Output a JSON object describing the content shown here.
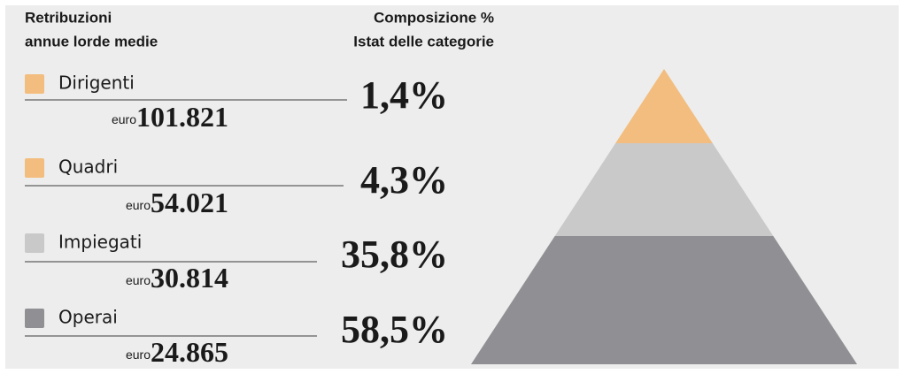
{
  "chart_data": {
    "type": "pyramid",
    "left_header": [
      "Retribuzioni",
      "annue lorde medie"
    ],
    "right_header": [
      "Composizione %",
      "Istat delle categorie"
    ],
    "categories": [
      "Dirigenti",
      "Quadri",
      "Impiegati",
      "Operai"
    ],
    "values": [
      1.4,
      4.3,
      35.8,
      58.5
    ],
    "value_labels": [
      "1,4%",
      "4,3%",
      "35,8%",
      "58,5%"
    ],
    "currency": "euro",
    "salaries": [
      {
        "value": 101821,
        "label": "101.821"
      },
      {
        "value": 54021,
        "label": "54.021"
      },
      {
        "value": 30814,
        "label": "30.814"
      },
      {
        "value": 24865,
        "label": "24.865"
      }
    ],
    "colors": [
      "#f2bd7e",
      "#f2bd7e",
      "#c9c9c9",
      "#8f8f94"
    ]
  }
}
